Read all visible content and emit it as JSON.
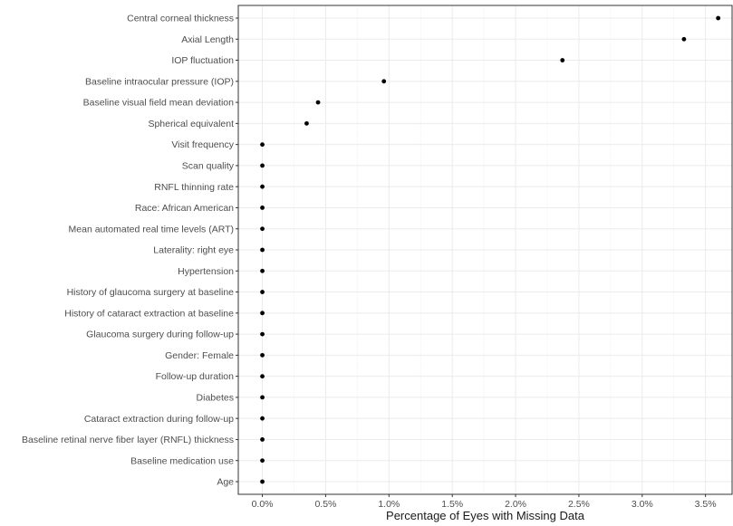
{
  "chart_data": {
    "type": "scatter",
    "title": "",
    "xlabel": "Percentage of Eyes with Missing Data",
    "ylabel": "",
    "xlim": [
      -0.0019,
      0.0371
    ],
    "x_ticks": [
      0,
      0.005,
      0.01,
      0.015,
      0.02,
      0.025,
      0.03,
      0.035
    ],
    "x_tick_labels": [
      "0.0%",
      "0.5%",
      "1.0%",
      "1.5%",
      "2.0%",
      "2.5%",
      "3.0%",
      "3.5%"
    ],
    "grid": true,
    "legend": "none",
    "point_color": "#000000",
    "categories": [
      "Central corneal thickness",
      "Axial Length",
      "IOP fluctuation",
      "Baseline intraocular pressure (IOP)",
      "Baseline visual field mean deviation",
      "Spherical equivalent",
      "Visit frequency",
      "Scan quality",
      "RNFL thinning rate",
      "Race: African American",
      "Mean automated real time levels (ART)",
      "Laterality: right eye",
      "Hypertension",
      "History of glaucoma surgery at baseline",
      "History of cataract extraction at baseline",
      "Glaucoma surgery during follow-up",
      "Gender: Female",
      "Follow-up duration",
      "Diabetes",
      "Cataract extraction during follow-up",
      "Baseline retinal nerve fiber layer (RNFL) thickness",
      "Baseline medication use",
      "Age"
    ],
    "values": [
      0.036,
      0.0333,
      0.0237,
      0.0096,
      0.0044,
      0.0035,
      0,
      0,
      0,
      0,
      0,
      0,
      0,
      0,
      0,
      0,
      0,
      0,
      0,
      0,
      0,
      0,
      0
    ]
  }
}
